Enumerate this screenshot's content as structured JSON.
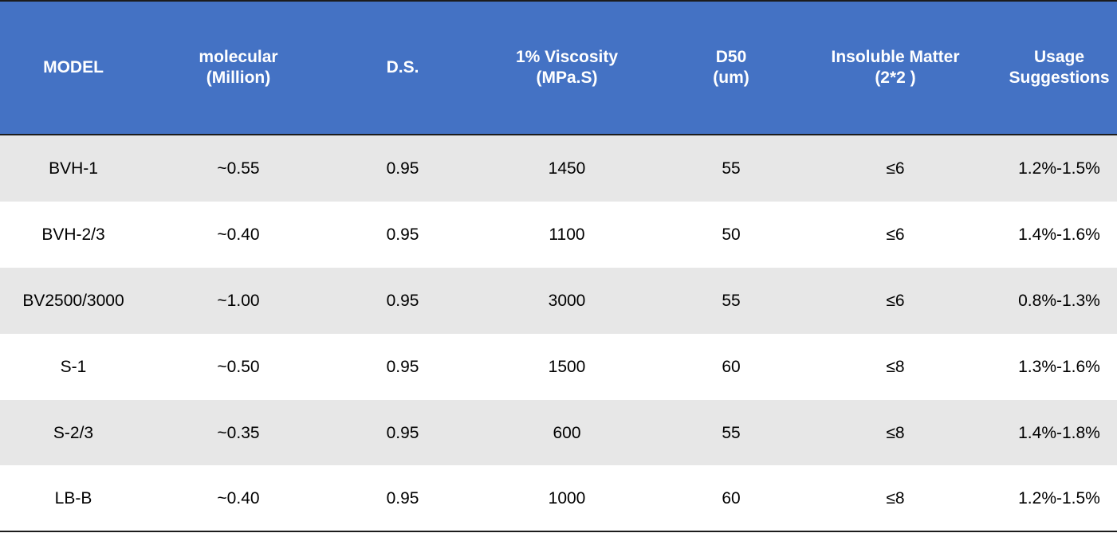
{
  "table": {
    "headers": [
      {
        "line1": "MODEL",
        "line2": ""
      },
      {
        "line1": "molecular",
        "line2": "(Million)"
      },
      {
        "line1": "D.S.",
        "line2": ""
      },
      {
        "line1": "1% Viscosity",
        "line2": "(MPa.S)"
      },
      {
        "line1": "D50",
        "line2": "(um)"
      },
      {
        "line1": "Insoluble Matter",
        "line2": "(2*2 )"
      },
      {
        "line1": "Usage",
        "line2": "Suggestions"
      }
    ],
    "rows": [
      [
        "BVH-1",
        "~0.55",
        "0.95",
        "1450",
        "55",
        "≤6",
        "1.2%-1.5%"
      ],
      [
        "BVH-2/3",
        "~0.40",
        "0.95",
        "1100",
        "50",
        "≤6",
        "1.4%-1.6%"
      ],
      [
        "BV2500/3000",
        "~1.00",
        "0.95",
        "3000",
        "55",
        "≤6",
        "0.8%-1.3%"
      ],
      [
        "S-1",
        "~0.50",
        "0.95",
        "1500",
        "60",
        "≤8",
        "1.3%-1.6%"
      ],
      [
        "S-2/3",
        "~0.35",
        "0.95",
        "600",
        "55",
        "≤8",
        "1.4%-1.8%"
      ],
      [
        "LB-B",
        "~0.40",
        "0.95",
        "1000",
        "60",
        "≤8",
        "1.2%-1.5%"
      ]
    ]
  },
  "colors": {
    "header_bg": "#4472c4",
    "header_text": "#ffffff",
    "shaded_row": "#e7e7e7",
    "plain_row": "#ffffff",
    "rule": "#1c1c1c"
  }
}
